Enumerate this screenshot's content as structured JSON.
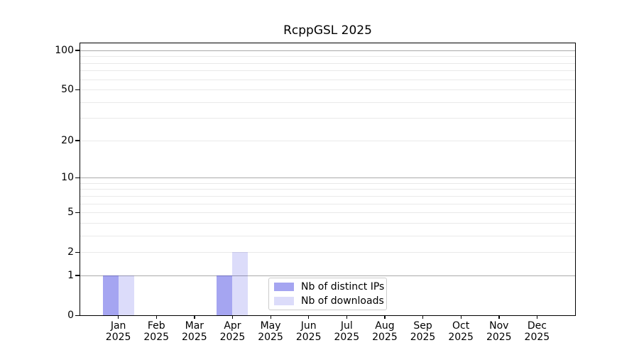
{
  "chart_data": {
    "type": "bar",
    "title": "RcppGSL 2025",
    "categories": [
      "Jan",
      "Feb",
      "Mar",
      "Apr",
      "May",
      "Jun",
      "Jul",
      "Aug",
      "Sep",
      "Oct",
      "Nov",
      "Dec"
    ],
    "category_year": "2025",
    "series": [
      {
        "name": "Nb of distinct IPs",
        "color": "rgba(30,30,220,0.40)",
        "color_hex": "#a5a5f0",
        "values": [
          1,
          0,
          0,
          1,
          0,
          0,
          0,
          0,
          0,
          0,
          0,
          0
        ]
      },
      {
        "name": "Nb of downloads",
        "color": "rgba(30,30,220,0.155)",
        "color_hex": "#dcdcfa",
        "values": [
          1,
          0,
          0,
          2,
          0,
          0,
          0,
          0,
          0,
          0,
          0,
          0
        ]
      }
    ],
    "xlabel": "",
    "ylabel": "",
    "yscale": "log1p",
    "ylim": [
      0,
      113
    ],
    "ytick_values": [
      0,
      1,
      2,
      5,
      10,
      20,
      50,
      100
    ],
    "major_gridline_values": [
      1,
      10,
      100
    ],
    "minor_gridline_values": [
      2,
      3,
      4,
      5,
      6,
      7,
      8,
      9,
      20,
      30,
      40,
      50,
      60,
      70,
      80,
      90
    ],
    "grid_major_color": "#aaaaaa",
    "grid_minor_color": "#e9e9e9",
    "legend_position": "bottom-center",
    "bars_per_month_note": "left bar = distinct IPs, right bar = downloads; months with value 0 have no bar"
  }
}
